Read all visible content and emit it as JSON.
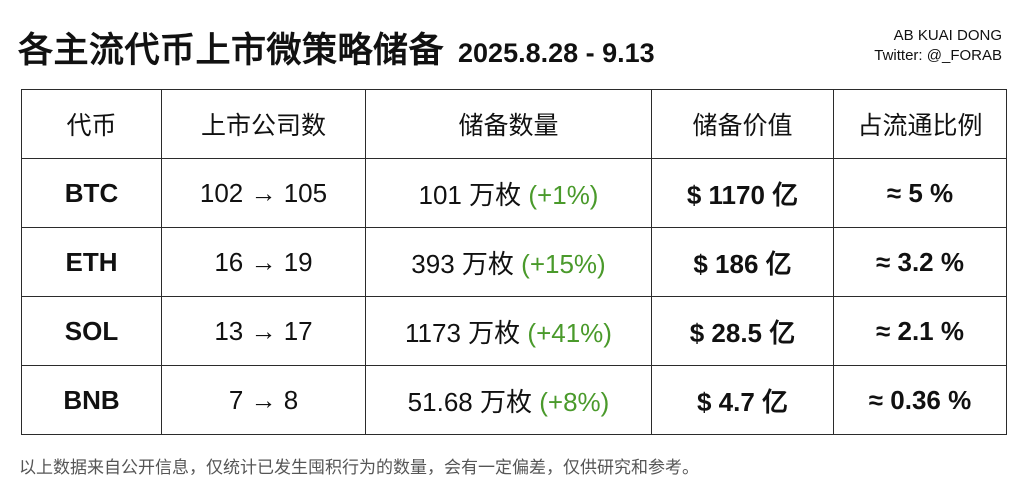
{
  "title": "各主流代币上市微策略储备",
  "date_range": "2025.8.28 - 9.13",
  "credit": {
    "line1": "AB KUAI DONG",
    "line2": "Twitter: @_FORAB"
  },
  "table": {
    "headers": [
      "代币",
      "上市公司数",
      "储备数量",
      "储备价值",
      "占流通比例"
    ],
    "rows": [
      {
        "token": "BTC",
        "companies": "102 → 105",
        "quantity": "101",
        "unit": "万枚",
        "change": "(+1%)",
        "value": "$ 1170 亿",
        "percent": "≈ 5 %"
      },
      {
        "token": "ETH",
        "companies": "16 → 19",
        "quantity": "393",
        "unit": "万枚",
        "change": "(+15%)",
        "value": "$ 186 亿",
        "percent": "≈ 3.2 %"
      },
      {
        "token": "SOL",
        "companies": "13 → 17",
        "quantity": "1173",
        "unit": "万枚",
        "change": "(+41%)",
        "value": "$ 28.5 亿",
        "percent": "≈ 2.1 %"
      },
      {
        "token": "BNB",
        "companies": "7 → 8",
        "quantity": "51.68",
        "unit": "万枚",
        "change": "(+8%)",
        "value": "$ 4.7 亿",
        "percent": "≈ 0.36 %"
      }
    ]
  },
  "footnote": "以上数据来自公开信息，仅统计已发生囤积行为的数量，会有一定偏差，仅供研究和参考。",
  "colors": {
    "change_green": "#4a9a2b",
    "border": "#2b2b2b",
    "footnote_gray": "#555555"
  }
}
